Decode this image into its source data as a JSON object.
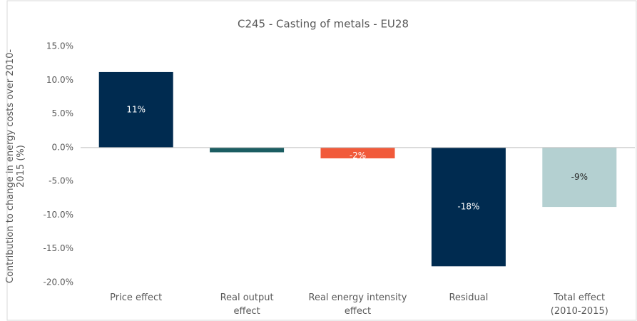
{
  "chart_data": {
    "type": "bar",
    "title": "C245 - Casting of metals - EU28",
    "y_label": "Contribution to change in energy costs over 2010-2015 (%)",
    "categories": [
      "Price effect",
      "Real output effect",
      "Real energy intensity effect",
      "Residual",
      "Total effect (2010-2015)"
    ],
    "values": [
      11.2,
      -0.7,
      -1.6,
      -17.6,
      -8.8
    ],
    "value_labels": [
      "11%",
      null,
      "-2%",
      "-18%",
      "-9%"
    ],
    "colors": [
      "#002b50",
      "#1b5d62",
      "#f15a3a",
      "#002b50",
      "#b4d0d1"
    ],
    "ylim": [
      -20,
      15
    ],
    "yticks": [
      {
        "value": 15,
        "label": "15.0%"
      },
      {
        "value": 10,
        "label": "10.0%"
      },
      {
        "value": 5,
        "label": "5.0%"
      },
      {
        "value": 0,
        "label": "0.0%"
      },
      {
        "value": -5,
        "label": "-5.0%"
      },
      {
        "value": -10,
        "label": "-10.0%"
      },
      {
        "value": -15,
        "label": "-15.0%"
      },
      {
        "value": -20,
        "label": "-20.0%"
      }
    ],
    "grid": false
  }
}
